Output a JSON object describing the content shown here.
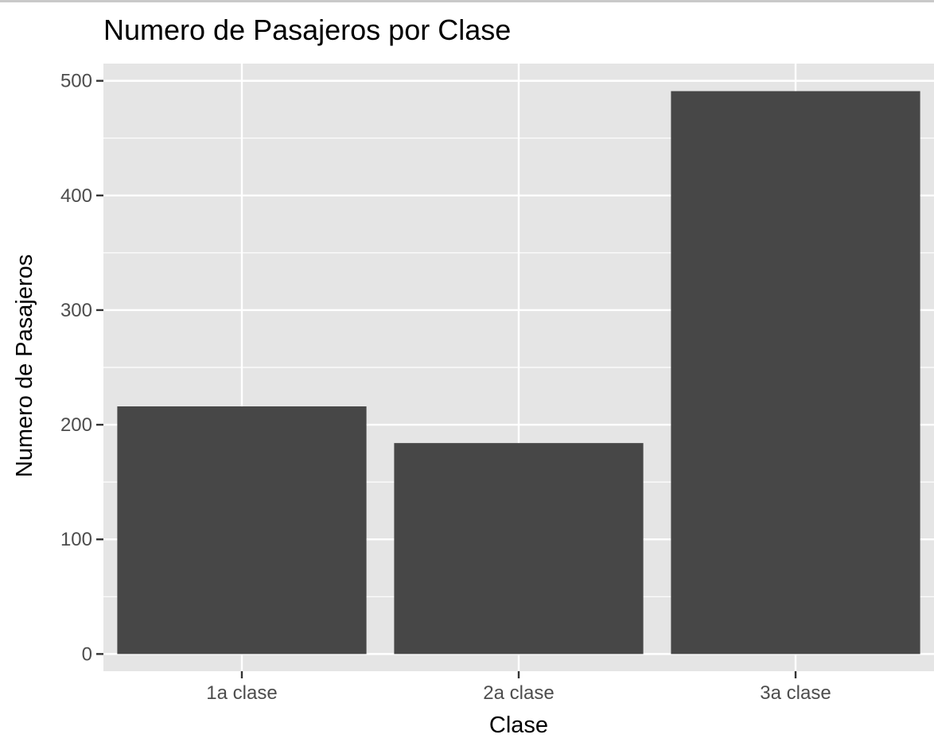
{
  "chart_data": {
    "type": "bar",
    "title": "Numero de Pasajeros por Clase",
    "xlabel": "Clase",
    "ylabel": "Numero de Pasajeros",
    "categories": [
      "1a clase",
      "2a clase",
      "3a clase"
    ],
    "values": [
      216,
      184,
      491
    ],
    "ylim": [
      -15,
      515
    ],
    "yticks": [
      0,
      100,
      200,
      300,
      400,
      500
    ],
    "grid": true,
    "legend": "none",
    "colors": {
      "bar": "#474747",
      "panel": "#e5e5e5",
      "grid": "#ffffff",
      "tick": "#333333",
      "tick_label": "#4d4d4d",
      "text": "#000000"
    }
  }
}
